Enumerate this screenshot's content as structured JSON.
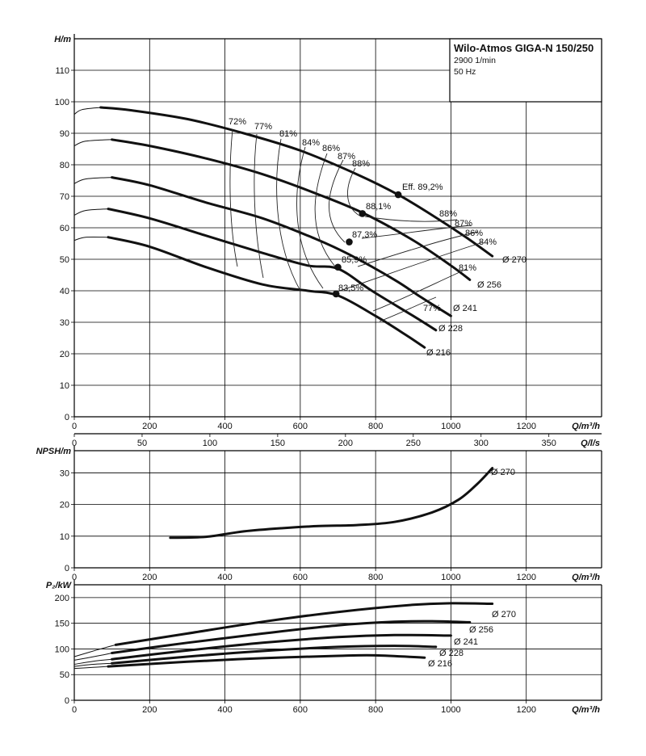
{
  "title_box": {
    "title": "Wilo-Atmos GIGA-N 150/250",
    "speed": "2900 1/min",
    "frequency": "50 Hz"
  },
  "chart_data": [
    {
      "type": "line",
      "name": "head",
      "ylabel": "H/m",
      "xlabel": "Q/m³/h",
      "xlim": [
        0,
        1400
      ],
      "ylim": [
        0,
        120
      ],
      "xticks": [
        0,
        200,
        400,
        600,
        800,
        1000,
        1200
      ],
      "yticks": [
        0,
        10,
        20,
        30,
        40,
        50,
        60,
        70,
        80,
        90,
        100,
        110
      ],
      "grid": true,
      "secondary_axis": {
        "label": "Q/l/s",
        "ticks": [
          0,
          50,
          100,
          150,
          200,
          250,
          300,
          350
        ]
      },
      "series": [
        {
          "name": "Ø 270",
          "thin": [
            [
              0,
              96
            ],
            [
              20,
              97.5
            ],
            [
              70,
              98.2
            ]
          ],
          "values": [
            [
              70,
              98.2
            ],
            [
              150,
              97.3
            ],
            [
              300,
              94.5
            ],
            [
              450,
              90
            ],
            [
              600,
              84.5
            ],
            [
              750,
              77
            ],
            [
              860,
              70.5
            ],
            [
              950,
              64
            ],
            [
              1040,
              57
            ],
            [
              1110,
              51
            ]
          ],
          "bep": [
            860,
            70.5
          ],
          "bep_label": "Eff. 89,2%"
        },
        {
          "name": "Ø 256",
          "thin": [
            [
              0,
              86
            ],
            [
              30,
              87.5
            ],
            [
              100,
              88
            ]
          ],
          "values": [
            [
              100,
              88
            ],
            [
              200,
              86
            ],
            [
              350,
              82
            ],
            [
              500,
              77
            ],
            [
              650,
              70.5
            ],
            [
              770,
              64.5
            ],
            [
              900,
              56
            ],
            [
              1000,
              48
            ],
            [
              1050,
              43.5
            ]
          ],
          "bep": [
            765,
            64.5
          ],
          "bep_label": "88,1%"
        },
        {
          "name": "Ø 241",
          "thin": [
            [
              0,
              74
            ],
            [
              30,
              75.5
            ],
            [
              100,
              76
            ]
          ],
          "values": [
            [
              100,
              76
            ],
            [
              200,
              73.5
            ],
            [
              350,
              68
            ],
            [
              500,
              63
            ],
            [
              640,
              56.5
            ],
            [
              730,
              51.5
            ],
            [
              850,
              43.5
            ],
            [
              920,
              38
            ],
            [
              1000,
              32
            ]
          ],
          "bep": [
            730,
            55.5
          ],
          "bep_label": "87,3%"
        },
        {
          "name": "Ø 228",
          "thin": [
            [
              0,
              64
            ],
            [
              30,
              65.5
            ],
            [
              90,
              66
            ]
          ],
          "values": [
            [
              90,
              66
            ],
            [
              200,
              63
            ],
            [
              350,
              57.5
            ],
            [
              500,
              52
            ],
            [
              620,
              48
            ],
            [
              700,
              47
            ],
            [
              790,
              40
            ],
            [
              900,
              32
            ],
            [
              960,
              27.5
            ]
          ],
          "bep": [
            700,
            47.5
          ],
          "bep_label": "85,9%"
        },
        {
          "name": "Ø 216",
          "thin": [
            [
              0,
              56
            ],
            [
              30,
              57
            ],
            [
              90,
              57
            ]
          ],
          "values": [
            [
              90,
              57
            ],
            [
              200,
              54
            ],
            [
              350,
              47.5
            ],
            [
              500,
              42
            ],
            [
              620,
              40
            ],
            [
              700,
              38.5
            ],
            [
              800,
              32
            ],
            [
              880,
              26
            ],
            [
              930,
              22
            ]
          ],
          "bep": [
            695,
            39
          ],
          "bep_label": "83,5%"
        }
      ],
      "efficiency_labels": [
        "72%",
        "77%",
        "81%",
        "84%",
        "86%",
        "87%",
        "88%",
        "88%",
        "87%",
        "86%",
        "84%",
        "81%",
        "77%"
      ]
    },
    {
      "type": "line",
      "name": "npsh",
      "ylabel": "NPSH/m",
      "xlabel": "Q/m³/h",
      "xlim": [
        0,
        1400
      ],
      "ylim": [
        0,
        37
      ],
      "xticks": [
        0,
        200,
        400,
        600,
        800,
        1000,
        1200
      ],
      "yticks": [
        0,
        10,
        20,
        30
      ],
      "grid": true,
      "series": [
        {
          "name": "Ø 270",
          "values": [
            [
              255,
              9.5
            ],
            [
              350,
              9.8
            ],
            [
              450,
              11.5
            ],
            [
              550,
              12.5
            ],
            [
              650,
              13.2
            ],
            [
              750,
              13.5
            ],
            [
              850,
              14.5
            ],
            [
              950,
              17.5
            ],
            [
              1020,
              21.5
            ],
            [
              1070,
              26.5
            ],
            [
              1110,
              31.5
            ]
          ]
        }
      ]
    },
    {
      "type": "line",
      "name": "power",
      "ylabel": "P₂/kW",
      "xlabel": "Q/m³/h",
      "xlim": [
        0,
        1400
      ],
      "ylim": [
        0,
        225
      ],
      "xticks": [
        0,
        200,
        400,
        600,
        800,
        1000,
        1200
      ],
      "yticks": [
        0,
        50,
        100,
        150,
        200
      ],
      "grid": true,
      "series": [
        {
          "name": "Ø 270",
          "thin": [
            [
              0,
              85
            ],
            [
              60,
              98
            ],
            [
              110,
              108
            ]
          ],
          "values": [
            [
              110,
              108
            ],
            [
              300,
              130
            ],
            [
              500,
              153
            ],
            [
              700,
              172
            ],
            [
              900,
              186
            ],
            [
              1000,
              189
            ],
            [
              1110,
              188
            ]
          ]
        },
        {
          "name": "Ø 256",
          "thin": [
            [
              0,
              78
            ],
            [
              60,
              86
            ],
            [
              100,
              92
            ]
          ],
          "values": [
            [
              100,
              92
            ],
            [
              300,
              112
            ],
            [
              500,
              130
            ],
            [
              700,
              146
            ],
            [
              850,
              153
            ],
            [
              950,
              154
            ],
            [
              1050,
              152
            ]
          ]
        },
        {
          "name": "Ø 241",
          "thin": [
            [
              0,
              70
            ],
            [
              50,
              76
            ],
            [
              100,
              80
            ]
          ],
          "values": [
            [
              100,
              80
            ],
            [
              300,
              97
            ],
            [
              500,
              112
            ],
            [
              700,
              123
            ],
            [
              850,
              127
            ],
            [
              1000,
              126
            ]
          ]
        },
        {
          "name": "Ø 228",
          "thin": [
            [
              0,
              66
            ],
            [
              50,
              70
            ],
            [
              100,
              72
            ]
          ],
          "values": [
            [
              100,
              72
            ],
            [
              300,
              85
            ],
            [
              500,
              96
            ],
            [
              700,
              104
            ],
            [
              850,
              106
            ],
            [
              960,
              104
            ]
          ]
        },
        {
          "name": "Ø 216",
          "thin": [
            [
              0,
              62
            ],
            [
              50,
              64
            ],
            [
              90,
              66
            ]
          ],
          "values": [
            [
              90,
              66
            ],
            [
              300,
              75
            ],
            [
              500,
              82
            ],
            [
              700,
              86.5
            ],
            [
              800,
              87.5
            ],
            [
              930,
              83
            ]
          ]
        }
      ]
    }
  ]
}
